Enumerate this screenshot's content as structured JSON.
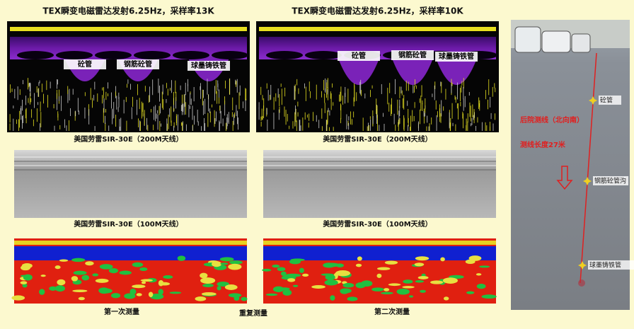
{
  "panels": [
    {
      "title": "TEX瞬变电磁雷达发射6.25Hz，采样率13K",
      "targets": [
        "砼管",
        "钢筋砼管",
        "球墨铸铁管"
      ],
      "caption_200m": "美国劳雷SIR-30E（200M天线）",
      "caption_100m": "美国劳雷SIR-30E（100M天线）",
      "caption": "第一次测量"
    },
    {
      "title": "TEX瞬变电磁雷达发射6.25Hz，采样率10K",
      "targets": [
        "砼管",
        "钢筋砼管",
        "球墨铸铁管"
      ],
      "caption_200m": "美国劳雷SIR-30E（200M天线）",
      "caption_100m": "美国劳雷SIR-30E（100M天线）",
      "caption": "第二次测量"
    }
  ],
  "center_caption": "重复测量",
  "photo": {
    "route_label": "后院测线（北向南）",
    "length_label": "测线长度27米",
    "points": [
      "砼管",
      "钢筋砼管沟",
      "球墨铸铁管"
    ]
  }
}
